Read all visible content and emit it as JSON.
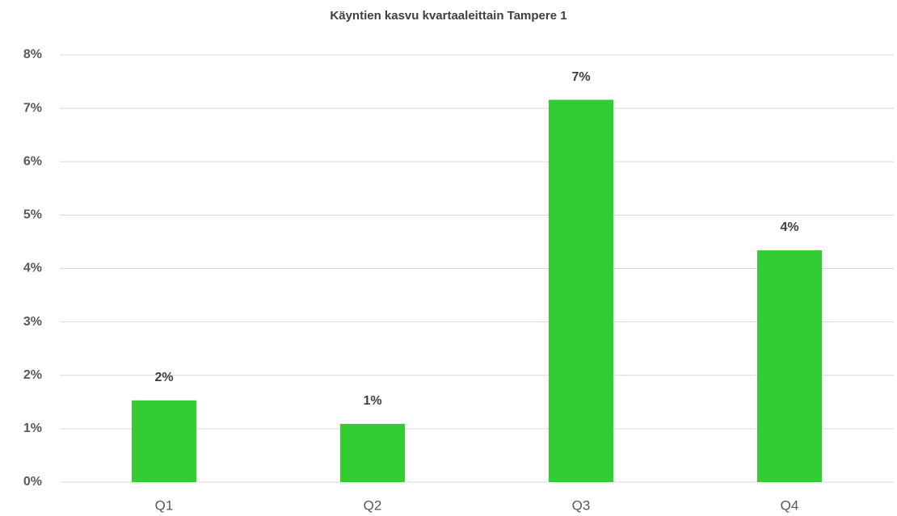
{
  "chart_data": {
    "type": "bar",
    "title": "Käyntien kasvu kvartaaleittain Tampere 1",
    "categories": [
      "Q1",
      "Q2",
      "Q3",
      "Q4"
    ],
    "values": [
      1.53,
      1.09,
      7.16,
      4.34
    ],
    "value_labels": [
      "2%",
      "1%",
      "7%",
      "4%"
    ],
    "color": "#33cc33",
    "ylim": [
      0,
      8
    ],
    "yticks": [
      {
        "value": 0,
        "label": "0%"
      },
      {
        "value": 1,
        "label": "1%"
      },
      {
        "value": 2,
        "label": "2%"
      },
      {
        "value": 3,
        "label": "3%"
      },
      {
        "value": 4,
        "label": "4%"
      },
      {
        "value": 5,
        "label": "5%"
      },
      {
        "value": 6,
        "label": "6%"
      },
      {
        "value": 7,
        "label": "7%"
      },
      {
        "value": 8,
        "label": "8%"
      }
    ],
    "grid": true
  }
}
